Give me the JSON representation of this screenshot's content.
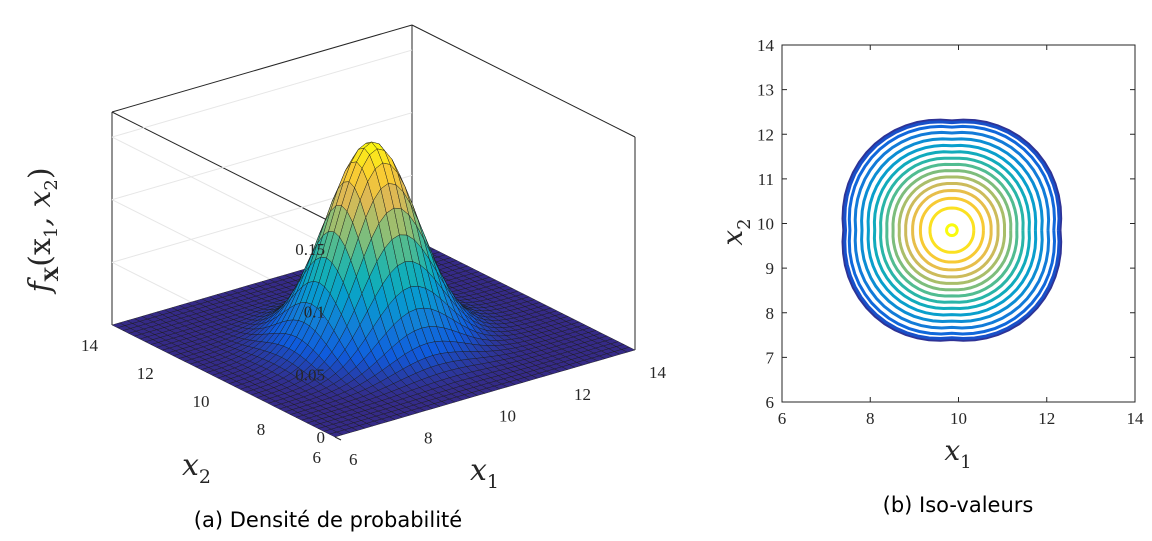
{
  "chart_data": [
    {
      "type": "surface",
      "caption": "(a) Densité de probabilité",
      "xlabel": "x",
      "xlabel_sub": "1",
      "ylabel": "x",
      "ylabel_sub": "2",
      "zlabel_main": "f",
      "zlabel_sub": "X",
      "zlabel_args": "(x",
      "zlabel_args_sub1": "1",
      "zlabel_args_mid": ", x",
      "zlabel_args_sub2": "2",
      "zlabel_args_end": ")",
      "xlim": [
        6,
        14
      ],
      "ylim": [
        6,
        14
      ],
      "zlim": [
        0,
        0.17
      ],
      "x_ticks": [
        "6",
        "8",
        "10",
        "12",
        "14"
      ],
      "y_ticks": [
        "6",
        "8",
        "10",
        "12",
        "14"
      ],
      "z_ticks": [
        "0",
        "0.05",
        "0.1",
        "0.15"
      ],
      "peak": {
        "x": 9.8,
        "y": 9.8,
        "z": 0.16
      },
      "spread_sigma": 1.0,
      "colormap": "parula",
      "grid": true
    },
    {
      "type": "contour",
      "caption": "(b) Iso-valeurs",
      "xlabel": "x",
      "xlabel_sub": "1",
      "ylabel": "x",
      "ylabel_sub": "2",
      "xlim": [
        6,
        14
      ],
      "ylim": [
        6,
        14
      ],
      "x_ticks": [
        "6",
        "8",
        "10",
        "12",
        "14"
      ],
      "y_ticks": [
        "6",
        "7",
        "8",
        "9",
        "10",
        "11",
        "12",
        "13",
        "14"
      ],
      "center": {
        "x": 9.85,
        "y": 9.85
      },
      "outer_extent": {
        "x_min": 7.7,
        "x_max": 12.6,
        "y_min": 7.7,
        "y_max": 12.6
      },
      "levels": 16,
      "colormap": "parula",
      "colors": {
        "low": "#352a87",
        "mid": "#21b4c3",
        "high": "#f9fb0e"
      }
    }
  ]
}
